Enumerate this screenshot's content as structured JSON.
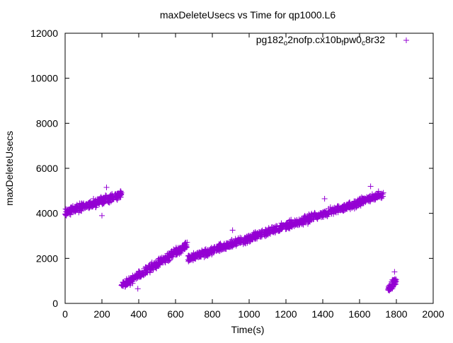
{
  "chart_data": {
    "type": "scatter",
    "title": "maxDeleteUsecs vs Time for qp1000.L6",
    "xlabel": "Time(s)",
    "ylabel": "maxDeleteUsecs",
    "xlim": [
      0,
      2000
    ],
    "ylim": [
      0,
      12000
    ],
    "xticks": [
      "0",
      "200",
      "400",
      "600",
      "800",
      "1000",
      "1200",
      "1400",
      "1600",
      "1800",
      "2000"
    ],
    "yticks": [
      "0",
      "2000",
      "4000",
      "6000",
      "8000",
      "10000",
      "12000"
    ],
    "grid": false,
    "legend": {
      "placement": "top-right",
      "label": "pg182_o2nofp.cx10b_fpw0_c8r32",
      "parts": [
        {
          "t": "pg182",
          "sub": false
        },
        {
          "t": "o",
          "sub": true
        },
        {
          "t": "2nofp.cx10b",
          "sub": false
        },
        {
          "t": "f",
          "sub": true
        },
        {
          "t": "pw0",
          "sub": false
        },
        {
          "t": "c",
          "sub": true
        },
        {
          "t": "8r32",
          "sub": false
        }
      ]
    },
    "marker": "+",
    "color": "#9400d3",
    "series": [
      {
        "name": "pg182_o2nofp.cx10b_fpw0_c8r32",
        "segments": [
          {
            "x_start": 0,
            "x_end": 310,
            "y_start": 4050,
            "y_end": 4850,
            "spread": 250,
            "count": 320
          },
          {
            "x_start": 305,
            "x_end": 665,
            "y_start": 750,
            "y_end": 2600,
            "spread": 250,
            "count": 360
          },
          {
            "x_start": 668,
            "x_end": 1730,
            "y_start": 2000,
            "y_end": 4850,
            "spread": 250,
            "count": 1000
          },
          {
            "x_start": 1755,
            "x_end": 1800,
            "y_start": 650,
            "y_end": 1050,
            "spread": 300,
            "count": 60
          }
        ],
        "outliers": [
          [
            225,
            5150
          ],
          [
            200,
            3900
          ],
          [
            1410,
            4650
          ],
          [
            910,
            3250
          ],
          [
            1660,
            5200
          ],
          [
            1790,
            1400
          ],
          [
            395,
            650
          ]
        ]
      }
    ]
  }
}
